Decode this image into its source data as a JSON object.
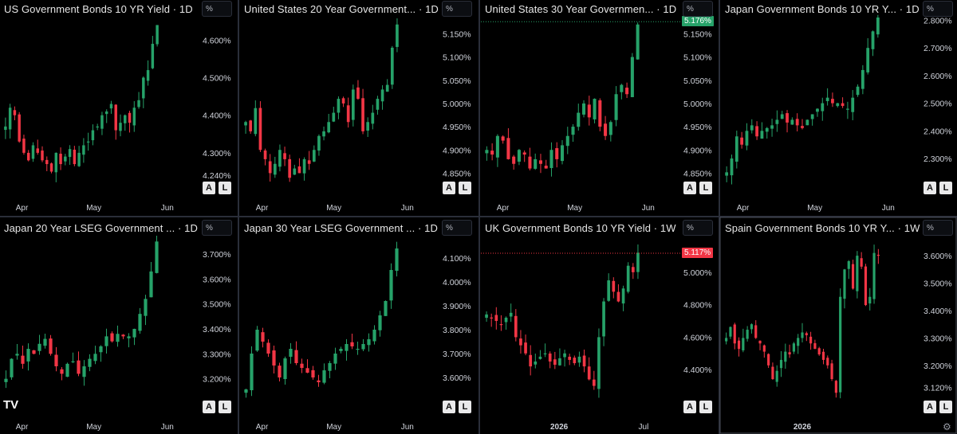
{
  "app": {
    "logo": "TV"
  },
  "colors": {
    "up": "#26a269",
    "down": "#f23645",
    "background": "#000000",
    "grid_divider": "#2a2e39"
  },
  "buttons": {
    "auto": "A",
    "log": "L",
    "unit": "%"
  },
  "chart_data": [
    {
      "type": "candlestick",
      "title": "US Government Bonds 10 YR Yield · 1D",
      "yticks": [
        "4.600%",
        "4.500%",
        "4.400%",
        "4.300%",
        "4.240%"
      ],
      "ytick_values": [
        4.6,
        4.5,
        4.4,
        4.3,
        4.24
      ],
      "ylim": [
        4.215,
        4.66
      ],
      "xticks": [
        "Apr",
        "May",
        "Jun"
      ],
      "xtick_positions": [
        0.12,
        0.58,
        1.05
      ],
      "series": [
        {
          "values": [
            4.37,
            4.42,
            4.4,
            4.33,
            4.3,
            4.28,
            4.32,
            4.3,
            4.28,
            4.27,
            4.25,
            4.3,
            4.27,
            4.29,
            4.31,
            4.27,
            4.3,
            4.32,
            4.33,
            4.36,
            4.37,
            4.4,
            4.41,
            4.43,
            4.36,
            4.38,
            4.4,
            4.38,
            4.42,
            4.44,
            4.5,
            4.52,
            4.59,
            4.64
          ]
        }
      ]
    },
    {
      "type": "candlestick",
      "title": "United States 20 Year Government... · 1D",
      "yticks": [
        "5.150%",
        "5.100%",
        "5.050%",
        "5.000%",
        "4.950%",
        "4.900%",
        "4.850%"
      ],
      "ytick_values": [
        5.15,
        5.1,
        5.05,
        5.0,
        4.95,
        4.9,
        4.85
      ],
      "ylim": [
        4.825,
        5.185
      ],
      "xticks": [
        "Apr",
        "May",
        "Jun"
      ],
      "xtick_positions": [
        0.12,
        0.58,
        1.05
      ],
      "series": [
        {
          "values": [
            4.96,
            4.94,
            4.99,
            4.9,
            4.88,
            4.85,
            4.87,
            4.9,
            4.88,
            4.84,
            4.86,
            4.85,
            4.88,
            4.87,
            4.9,
            4.93,
            4.94,
            4.96,
            4.98,
            5.01,
            5.0,
            4.96,
            5.03,
            5.01,
            4.94,
            4.96,
            4.98,
            5.01,
            5.03,
            5.04,
            5.12,
            5.17
          ]
        }
      ]
    },
    {
      "type": "candlestick",
      "title": "United States 30 Year Governmen... · 1D",
      "yticks": [
        "5.150%",
        "5.100%",
        "5.050%",
        "5.000%",
        "4.950%",
        "4.900%",
        "4.850%"
      ],
      "ytick_values": [
        5.15,
        5.1,
        5.05,
        5.0,
        4.95,
        4.9,
        4.85
      ],
      "ylim": [
        4.825,
        5.185
      ],
      "price_label": "5.176%",
      "price_label_value": 5.176,
      "price_label_color": "up",
      "xticks": [
        "Apr",
        "May",
        "Jun"
      ],
      "xtick_positions": [
        0.12,
        0.58,
        1.05
      ],
      "series": [
        {
          "values": [
            4.9,
            4.89,
            4.93,
            4.92,
            4.88,
            4.87,
            4.9,
            4.89,
            4.86,
            4.88,
            4.87,
            4.86,
            4.9,
            4.88,
            4.91,
            4.93,
            4.95,
            4.98,
            5.0,
            4.97,
            5.01,
            4.95,
            4.93,
            4.96,
            5.02,
            5.04,
            5.02,
            5.1,
            5.17
          ]
        }
      ]
    },
    {
      "type": "candlestick",
      "title": "Japan Government Bonds 10 YR Y... · 1D",
      "yticks": [
        "2.800%",
        "2.700%",
        "2.600%",
        "2.500%",
        "2.400%",
        "2.300%"
      ],
      "ytick_values": [
        2.8,
        2.7,
        2.6,
        2.5,
        2.4,
        2.3
      ],
      "ylim": [
        2.205,
        2.81
      ],
      "xticks": [
        "Apr",
        "May",
        "Jun"
      ],
      "xtick_positions": [
        0.12,
        0.58,
        1.05
      ],
      "series": [
        {
          "values": [
            2.25,
            2.3,
            2.38,
            2.35,
            2.4,
            2.42,
            2.38,
            2.4,
            2.41,
            2.42,
            2.44,
            2.46,
            2.43,
            2.44,
            2.42,
            2.41,
            2.44,
            2.46,
            2.48,
            2.5,
            2.52,
            2.5,
            2.5,
            2.49,
            2.48,
            2.52,
            2.56,
            2.62,
            2.7,
            2.76,
            2.81
          ]
        }
      ]
    },
    {
      "type": "candlestick",
      "title": "Japan 20 Year LSEG Government ... · 1D",
      "yticks": [
        "3.700%",
        "3.600%",
        "3.500%",
        "3.400%",
        "3.300%",
        "3.200%"
      ],
      "ytick_values": [
        3.7,
        3.6,
        3.5,
        3.4,
        3.3,
        3.2
      ],
      "ylim": [
        3.1,
        3.77
      ],
      "xticks": [
        "Apr",
        "May",
        "Jun"
      ],
      "xtick_positions": [
        0.12,
        0.58,
        1.05
      ],
      "series": [
        {
          "values": [
            3.2,
            3.28,
            3.3,
            3.26,
            3.32,
            3.3,
            3.34,
            3.36,
            3.3,
            3.25,
            3.22,
            3.26,
            3.27,
            3.22,
            3.25,
            3.28,
            3.3,
            3.33,
            3.37,
            3.35,
            3.38,
            3.37,
            3.37,
            3.4,
            3.46,
            3.52,
            3.63,
            3.75
          ]
        }
      ]
    },
    {
      "type": "candlestick",
      "title": "Japan 30 Year LSEG Government ... · 1D",
      "yticks": [
        "4.100%",
        "4.000%",
        "3.900%",
        "3.800%",
        "3.700%",
        "3.600%"
      ],
      "ytick_values": [
        4.1,
        4.0,
        3.9,
        3.8,
        3.7,
        3.6
      ],
      "ylim": [
        3.49,
        4.19
      ],
      "xticks": [
        "Apr",
        "May",
        "Jun"
      ],
      "xtick_positions": [
        0.12,
        0.58,
        1.05
      ],
      "series": [
        {
          "values": [
            3.55,
            3.7,
            3.8,
            3.75,
            3.7,
            3.65,
            3.6,
            3.68,
            3.72,
            3.66,
            3.64,
            3.62,
            3.6,
            3.58,
            3.63,
            3.66,
            3.7,
            3.72,
            3.74,
            3.73,
            3.72,
            3.74,
            3.76,
            3.8,
            3.86,
            3.92,
            4.05,
            4.14
          ]
        }
      ]
    },
    {
      "type": "candlestick",
      "title": "UK Government Bonds 10 YR Yield · 1W",
      "yticks": [
        "5.000%",
        "4.800%",
        "4.600%",
        "4.400%"
      ],
      "ytick_values": [
        5.0,
        4.8,
        4.6,
        4.4
      ],
      "ylim": [
        4.19,
        5.22
      ],
      "price_label": "5.117%",
      "price_label_value": 5.117,
      "price_label_color": "down",
      "xticks": [
        "2026",
        "Jul"
      ],
      "xtick_positions": [
        0.48,
        1.02
      ],
      "series": [
        {
          "values": [
            4.74,
            4.72,
            4.7,
            4.68,
            4.72,
            4.75,
            4.6,
            4.55,
            4.5,
            4.42,
            4.45,
            4.48,
            4.5,
            4.45,
            4.43,
            4.47,
            4.5,
            4.46,
            4.44,
            4.48,
            4.42,
            4.34,
            4.3,
            4.6,
            4.82,
            4.95,
            4.88,
            4.82,
            4.9,
            5.04,
            5.0,
            5.12
          ]
        }
      ]
    },
    {
      "type": "candlestick",
      "title": "Spain Government Bonds 10 YR Y... · 1W",
      "yticks": [
        "3.600%",
        "3.500%",
        "3.400%",
        "3.300%",
        "3.200%",
        "3.120%"
      ],
      "ytick_values": [
        3.6,
        3.5,
        3.4,
        3.3,
        3.2,
        3.12
      ],
      "ylim": [
        3.06,
        3.67
      ],
      "xticks": [
        "2026"
      ],
      "xtick_positions": [
        0.5
      ],
      "series": [
        {
          "values": [
            3.3,
            3.34,
            3.28,
            3.26,
            3.3,
            3.33,
            3.35,
            3.3,
            3.28,
            3.25,
            3.2,
            3.15,
            3.18,
            3.22,
            3.25,
            3.24,
            3.28,
            3.3,
            3.32,
            3.31,
            3.28,
            3.26,
            3.24,
            3.22,
            3.2,
            3.15,
            3.1,
            3.45,
            3.55,
            3.58,
            3.48,
            3.6,
            3.56,
            3.42,
            3.45,
            3.61,
            3.6
          ]
        }
      ]
    }
  ]
}
